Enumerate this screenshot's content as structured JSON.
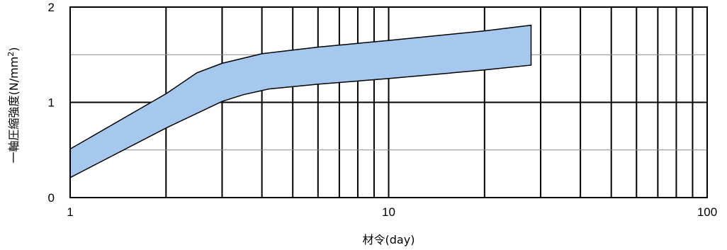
{
  "chart_data": {
    "type": "area",
    "title": "",
    "xlabel": "材令(day)",
    "ylabel_main": "一軸圧縮強度(N/mm",
    "ylabel_sup": "2",
    "ylabel_tail": ")",
    "x_scale": "log",
    "xlim": [
      1,
      100
    ],
    "ylim": [
      0,
      2
    ],
    "x_ticks": [
      1,
      10,
      100
    ],
    "y_ticks": [
      0,
      1,
      2
    ],
    "grid": true,
    "band_color": "#a7c8ee",
    "series": [
      {
        "role": "upper",
        "x": [
          1,
          2,
          2.5,
          3,
          4,
          6,
          10,
          20,
          28
        ],
        "y": [
          0.51,
          1.09,
          1.31,
          1.41,
          1.51,
          1.58,
          1.65,
          1.75,
          1.81
        ]
      },
      {
        "role": "lower",
        "x": [
          1,
          2,
          3,
          3.5,
          4.2,
          6,
          10,
          20,
          28
        ],
        "y": [
          0.21,
          0.73,
          1.01,
          1.08,
          1.14,
          1.19,
          1.25,
          1.34,
          1.39
        ]
      }
    ]
  }
}
